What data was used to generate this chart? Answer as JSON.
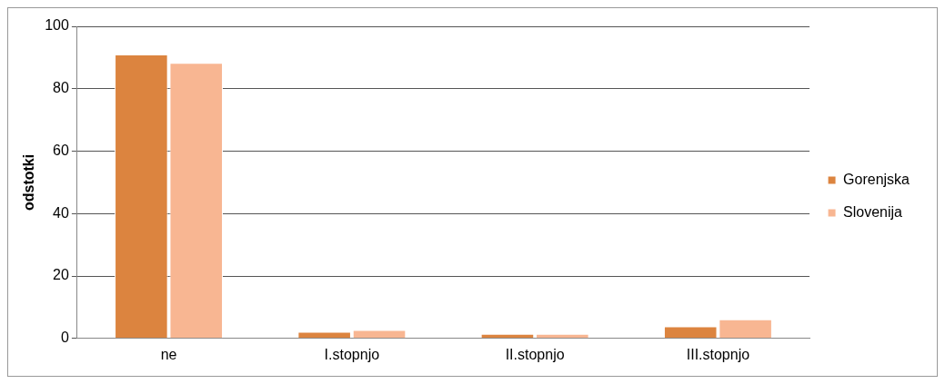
{
  "chart_data": {
    "type": "bar",
    "ylabel": "odstotki",
    "categories": [
      "ne",
      "I.stopnjo",
      "II.stopnjo",
      "III.stopnjo"
    ],
    "series": [
      {
        "name": "Gorenjska",
        "color": "#dc843f",
        "values": [
          91,
          2.1,
          1.5,
          3.9
        ]
      },
      {
        "name": "Slovenija",
        "color": "#f8b692",
        "values": [
          88.3,
          2.7,
          1.5,
          6.1
        ]
      }
    ],
    "ylim": [
      0,
      100
    ],
    "yticks": [
      0,
      20,
      40,
      60,
      80,
      100
    ],
    "grid": "y",
    "legend": "right"
  }
}
